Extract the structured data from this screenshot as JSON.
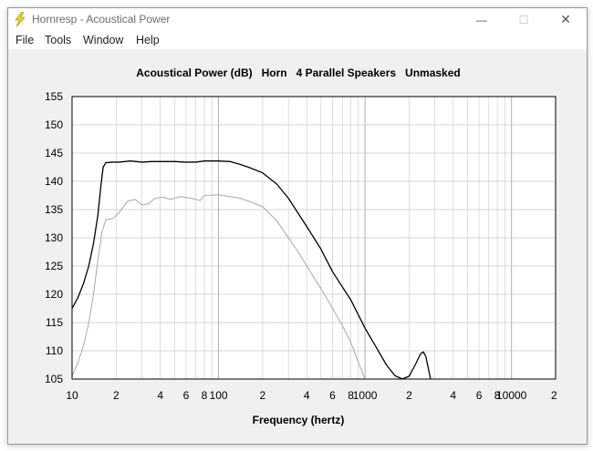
{
  "window": {
    "title": "Hornresp - Acoustical Power",
    "controls": {
      "minimize": "—",
      "maximize": "☐",
      "close": "✕"
    }
  },
  "menu": [
    {
      "label": "File"
    },
    {
      "label": "Tools"
    },
    {
      "label": "Window"
    },
    {
      "label": "Help"
    }
  ],
  "colors": {
    "series_main": "#000000",
    "series_secondary": "#a8a8a8",
    "grid": "#c8c8c8",
    "frame": "#000000",
    "icon_bolt": "#f2d21b"
  },
  "chart_data": {
    "type": "line",
    "title": "Acoustical Power (dB)   Horn   4 Parallel Speakers   Unmasked",
    "xlabel": "Frequency (hertz)",
    "ylabel": "",
    "x_scale": "log",
    "xlim": [
      10,
      20000
    ],
    "ylim": [
      105,
      155
    ],
    "grid": true,
    "y_ticks": [
      "105",
      "110",
      "115",
      "120",
      "125",
      "130",
      "135",
      "140",
      "145",
      "150",
      "155"
    ],
    "x_ticks": [
      {
        "value": 10,
        "label": "10"
      },
      {
        "value": 20,
        "label": "2"
      },
      {
        "value": 40,
        "label": "4"
      },
      {
        "value": 60,
        "label": "6"
      },
      {
        "value": 80,
        "label": "8"
      },
      {
        "value": 100,
        "label": "100"
      },
      {
        "value": 200,
        "label": "2"
      },
      {
        "value": 400,
        "label": "4"
      },
      {
        "value": 600,
        "label": "6"
      },
      {
        "value": 800,
        "label": "8"
      },
      {
        "value": 1000,
        "label": "1000"
      },
      {
        "value": 2000,
        "label": "2"
      },
      {
        "value": 4000,
        "label": "4"
      },
      {
        "value": 6000,
        "label": "6"
      },
      {
        "value": 8000,
        "label": "8"
      },
      {
        "value": 10000,
        "label": "10000"
      },
      {
        "value": 20000,
        "label": "2"
      }
    ],
    "series": [
      {
        "color": "#000000",
        "points": [
          [
            10,
            117.5
          ],
          [
            11,
            119.5
          ],
          [
            12,
            122
          ],
          [
            13,
            125
          ],
          [
            14,
            129
          ],
          [
            15,
            134
          ],
          [
            15.7,
            139
          ],
          [
            16.3,
            142.5
          ],
          [
            17,
            143.3
          ],
          [
            19,
            143.4
          ],
          [
            21,
            143.4
          ],
          [
            25,
            143.6
          ],
          [
            30,
            143.4
          ],
          [
            35,
            143.5
          ],
          [
            40,
            143.5
          ],
          [
            50,
            143.5
          ],
          [
            60,
            143.4
          ],
          [
            70,
            143.4
          ],
          [
            80,
            143.6
          ],
          [
            100,
            143.6
          ],
          [
            120,
            143.5
          ],
          [
            140,
            143
          ],
          [
            160,
            142.5
          ],
          [
            200,
            141.5
          ],
          [
            250,
            139.5
          ],
          [
            300,
            137
          ],
          [
            400,
            132
          ],
          [
            500,
            128
          ],
          [
            600,
            124
          ],
          [
            800,
            119
          ],
          [
            1000,
            114
          ],
          [
            1200,
            110.5
          ],
          [
            1400,
            107.5
          ],
          [
            1600,
            105.6
          ],
          [
            1800,
            105
          ],
          [
            2000,
            105.5
          ],
          [
            2200,
            107.5
          ],
          [
            2400,
            109.5
          ],
          [
            2500,
            109.8
          ],
          [
            2600,
            109
          ],
          [
            2700,
            107
          ],
          [
            2800,
            105
          ]
        ]
      },
      {
        "color": "#a8a8a8",
        "points": [
          [
            10,
            105.5
          ],
          [
            11,
            108
          ],
          [
            12,
            111
          ],
          [
            13,
            115
          ],
          [
            14,
            120
          ],
          [
            15,
            126
          ],
          [
            16,
            131
          ],
          [
            17,
            133.2
          ],
          [
            19,
            133.4
          ],
          [
            21,
            134.5
          ],
          [
            24,
            136.5
          ],
          [
            27,
            136.8
          ],
          [
            30,
            135.8
          ],
          [
            33,
            136
          ],
          [
            37,
            137
          ],
          [
            42,
            137.2
          ],
          [
            47,
            136.8
          ],
          [
            55,
            137.3
          ],
          [
            65,
            137
          ],
          [
            75,
            136.6
          ],
          [
            80,
            137.5
          ],
          [
            100,
            137.6
          ],
          [
            120,
            137.3
          ],
          [
            140,
            137
          ],
          [
            160,
            136.5
          ],
          [
            200,
            135.5
          ],
          [
            250,
            133
          ],
          [
            300,
            130
          ],
          [
            350,
            127.5
          ],
          [
            400,
            125
          ],
          [
            500,
            121
          ],
          [
            600,
            117.5
          ],
          [
            700,
            114.5
          ],
          [
            800,
            111.5
          ],
          [
            900,
            108
          ],
          [
            1000,
            105
          ]
        ]
      }
    ]
  }
}
